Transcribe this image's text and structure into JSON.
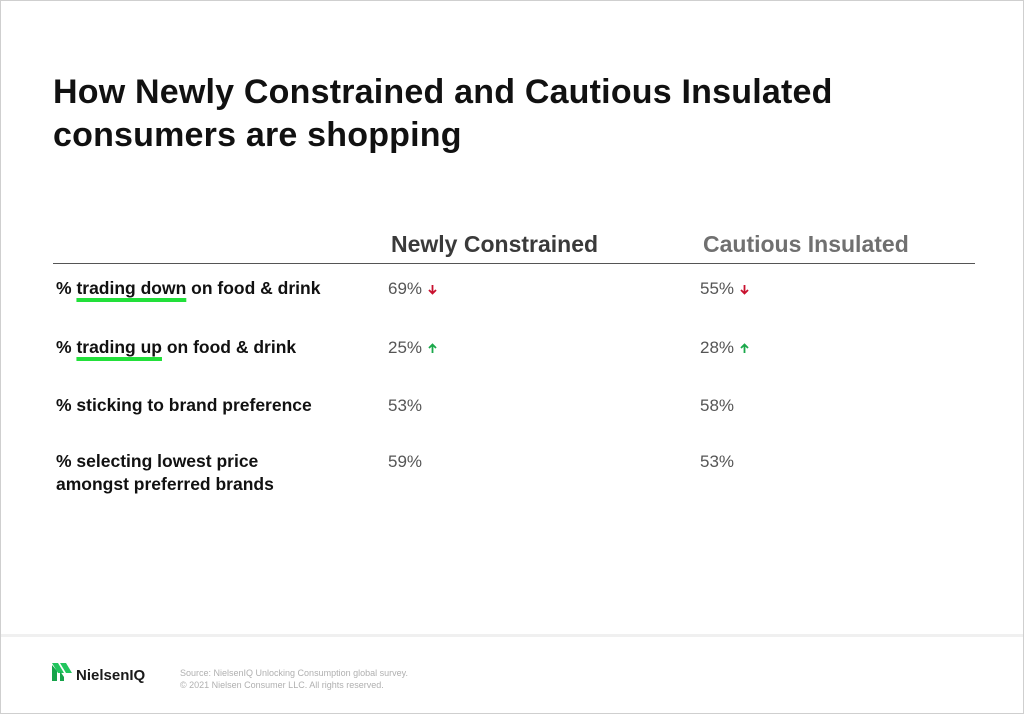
{
  "title": {
    "line1": "How Newly Constrained and Cautious Insulated",
    "line2": "consumers are shopping"
  },
  "columns": [
    "Newly Constrained",
    "Cautious Insulated"
  ],
  "rows": [
    {
      "label_prefix": "% ",
      "label_highlight": "trading down",
      "label_suffix": " on food & drink",
      "values": [
        "69%",
        "55%"
      ],
      "trend": "down",
      "trend_color": "#c8102e"
    },
    {
      "label_prefix": "% ",
      "label_highlight": "trading up",
      "label_suffix": " on food & drink",
      "values": [
        "25%",
        "28%"
      ],
      "trend": "up",
      "trend_color": "#1aa84a"
    },
    {
      "label": "% sticking to brand preference",
      "values": [
        "53%",
        "58%"
      ]
    },
    {
      "label_line1": "% selecting lowest price",
      "label_line2": "amongst preferred brands",
      "values": [
        "59%",
        "53%"
      ]
    }
  ],
  "highlight_color": "#22e03a",
  "footer": {
    "logo_text": "NielsenIQ",
    "logo_icon": "nielseniq-logo-mark-icon",
    "source_line1": "Source: NielsenIQ Unlocking Consumption global survey.",
    "source_line2": "© 2021 Nielsen Consumer LLC. All rights reserved."
  }
}
